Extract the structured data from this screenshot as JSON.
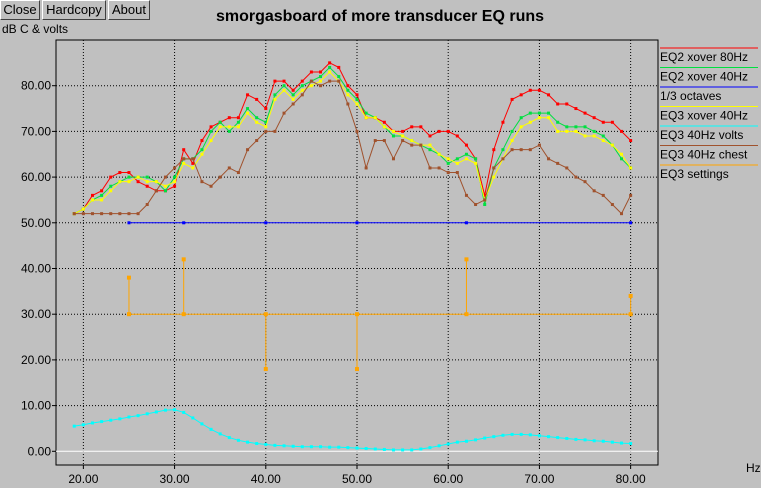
{
  "toolbar": {
    "close": "Close",
    "hardcopy": "Hardcopy",
    "about": "About"
  },
  "colors": {
    "background": "#c0c0c0",
    "grid": "#000000",
    "eq2_80": "#ff0000",
    "eq2_40": "#00e040",
    "octaves": "#0000ff",
    "eq3_40": "#ffff00",
    "eq3_volts": "#00ffff",
    "eq3_chest": "#a0522d",
    "eq3_settings": "#ffa500"
  },
  "chart_data": {
    "type": "line",
    "title": "smorgasboard of more transducer EQ runs",
    "ylabel": "dB C & volts",
    "xlabel": "Hz",
    "xlim": [
      17,
      83
    ],
    "ylim": [
      -3,
      90
    ],
    "xticks": [
      20,
      30,
      40,
      50,
      60,
      70,
      80
    ],
    "xtick_labels": [
      "20.00",
      "30.00",
      "40.00",
      "50.00",
      "60.00",
      "70.00",
      "80.00"
    ],
    "yticks": [
      0,
      10,
      20,
      30,
      40,
      50,
      60,
      70,
      80
    ],
    "ytick_labels": [
      "0.00",
      "10.00",
      "20.00",
      "30.00",
      "40.00",
      "50.00",
      "60.00",
      "70.00",
      "80.00"
    ],
    "grid": true,
    "legend": "right",
    "series": [
      {
        "name": "EQ2 xover 80Hz",
        "color": "#ff0000",
        "x": [
          19,
          20,
          21,
          22,
          23,
          24,
          25,
          26,
          27,
          28,
          29,
          30,
          31,
          32,
          33,
          34,
          35,
          36,
          37,
          38,
          39,
          40,
          41,
          42,
          43,
          44,
          45,
          46,
          47,
          48,
          49,
          50,
          51,
          52,
          53,
          54,
          55,
          56,
          57,
          58,
          59,
          60,
          61,
          62,
          63,
          64,
          65,
          66,
          67,
          68,
          69,
          70,
          71,
          72,
          73,
          74,
          75,
          76,
          77,
          78,
          79,
          80
        ],
        "y": [
          52,
          53,
          56,
          57,
          60,
          61,
          61,
          59,
          58,
          57,
          57,
          58,
          66,
          63,
          68,
          71,
          72,
          73,
          73,
          78,
          77,
          75,
          81,
          81,
          79,
          81,
          83,
          83,
          85,
          84,
          80,
          78,
          73,
          73,
          72,
          70,
          70,
          71,
          71,
          69,
          70,
          70,
          69,
          67,
          64,
          56,
          66,
          72,
          77,
          78,
          79,
          79,
          78,
          76,
          76,
          75,
          74,
          73,
          72,
          72,
          70,
          68
        ]
      },
      {
        "name": "EQ2 xover 40Hz",
        "color": "#00e040",
        "x": [
          19,
          20,
          21,
          22,
          23,
          24,
          25,
          26,
          27,
          28,
          29,
          30,
          31,
          32,
          33,
          34,
          35,
          36,
          37,
          38,
          39,
          40,
          41,
          42,
          43,
          44,
          45,
          46,
          47,
          48,
          49,
          50,
          51,
          52,
          53,
          54,
          55,
          56,
          57,
          58,
          59,
          60,
          61,
          62,
          63,
          64,
          65,
          66,
          67,
          68,
          69,
          70,
          71,
          72,
          73,
          74,
          75,
          76,
          77,
          78,
          79,
          80
        ],
        "y": [
          52,
          53,
          55,
          56,
          58,
          59,
          60,
          60,
          60,
          59,
          57,
          60,
          64,
          64,
          66,
          70,
          72,
          70,
          72,
          75,
          73,
          72,
          78,
          80,
          78,
          80,
          81,
          82,
          84,
          82,
          79,
          77,
          74,
          73,
          71,
          69,
          69,
          68,
          67,
          66,
          65,
          63,
          64,
          65,
          64,
          54,
          62,
          66,
          70,
          73,
          74,
          74,
          74,
          72,
          71,
          71,
          71,
          70,
          69,
          67,
          64,
          62
        ]
      },
      {
        "name": "1/3 octaves",
        "color": "#0000ff",
        "x": [
          25,
          31,
          40,
          50,
          62,
          80
        ],
        "y": [
          50,
          50,
          50,
          50,
          50,
          50
        ]
      },
      {
        "name": "EQ3 xover 40Hz",
        "color": "#ffff00",
        "x": [
          19,
          20,
          21,
          22,
          23,
          24,
          25,
          26,
          27,
          28,
          29,
          30,
          31,
          32,
          33,
          34,
          35,
          36,
          37,
          38,
          39,
          40,
          41,
          42,
          43,
          44,
          45,
          46,
          47,
          48,
          49,
          50,
          51,
          52,
          53,
          54,
          55,
          56,
          57,
          58,
          59,
          60,
          61,
          62,
          63,
          64,
          65,
          66,
          67,
          68,
          69,
          70,
          71,
          72,
          73,
          74,
          75,
          76,
          77,
          78,
          79,
          80
        ],
        "y": [
          52,
          53,
          55,
          55,
          57,
          59,
          59,
          60,
          59,
          59,
          58,
          59,
          63,
          62,
          65,
          68,
          71,
          71,
          71,
          74,
          72,
          71,
          77,
          79,
          77,
          79,
          80,
          81,
          83,
          81,
          78,
          76,
          73,
          73,
          71,
          70,
          69,
          68,
          67,
          67,
          65,
          64,
          63,
          64,
          63,
          55,
          60,
          64,
          68,
          71,
          72,
          73,
          73,
          70,
          70,
          70,
          69,
          69,
          68,
          67,
          65,
          62
        ]
      },
      {
        "name": "EQ3 40Hz volts",
        "color": "#00ffff",
        "x": [
          19,
          20,
          21,
          22,
          23,
          24,
          25,
          26,
          27,
          28,
          29,
          30,
          31,
          32,
          33,
          34,
          35,
          36,
          37,
          38,
          39,
          40,
          41,
          42,
          43,
          44,
          45,
          46,
          47,
          48,
          49,
          50,
          51,
          52,
          53,
          54,
          55,
          56,
          57,
          58,
          59,
          60,
          61,
          62,
          63,
          64,
          65,
          66,
          67,
          68,
          69,
          70,
          71,
          72,
          73,
          74,
          75,
          76,
          77,
          78,
          79,
          80
        ],
        "y": [
          5.5,
          5.8,
          6.2,
          6.5,
          6.8,
          7.1,
          7.5,
          7.8,
          8.2,
          8.6,
          9.0,
          9.1,
          8.5,
          7.3,
          6.0,
          4.8,
          3.8,
          3.0,
          2.4,
          2.0,
          1.7,
          1.5,
          1.3,
          1.2,
          1.1,
          1.0,
          1.0,
          1.0,
          0.9,
          0.9,
          0.8,
          0.7,
          0.6,
          0.5,
          0.4,
          0.3,
          0.3,
          0.3,
          0.5,
          0.8,
          1.2,
          1.6,
          2.0,
          2.2,
          2.5,
          2.9,
          3.2,
          3.5,
          3.7,
          3.7,
          3.6,
          3.4,
          3.2,
          3.0,
          2.8,
          2.6,
          2.5,
          2.3,
          2.2,
          2.0,
          1.8,
          1.7
        ]
      },
      {
        "name": "EQ3 40Hz chest",
        "color": "#a0522d",
        "x": [
          19,
          20,
          21,
          22,
          23,
          24,
          25,
          26,
          27,
          28,
          29,
          30,
          31,
          32,
          33,
          34,
          35,
          36,
          37,
          38,
          39,
          40,
          41,
          42,
          43,
          44,
          45,
          46,
          47,
          48,
          49,
          50,
          51,
          52,
          53,
          54,
          55,
          56,
          57,
          58,
          59,
          60,
          61,
          62,
          63,
          64,
          65,
          66,
          67,
          68,
          69,
          70,
          71,
          72,
          73,
          74,
          75,
          76,
          77,
          78,
          79,
          80
        ],
        "y": [
          52,
          52,
          52,
          52,
          52,
          52,
          52,
          52,
          54,
          57,
          60,
          62,
          64,
          64,
          59,
          58,
          60,
          62,
          61,
          66,
          68,
          70,
          70,
          74,
          76,
          78,
          81,
          80,
          81,
          81,
          76,
          70,
          62,
          68,
          68,
          64,
          68,
          67,
          67,
          62,
          62,
          61,
          61,
          56,
          54,
          55,
          62,
          64,
          66,
          66,
          66,
          67,
          64,
          63,
          62,
          60,
          59,
          57,
          56,
          54,
          52,
          56
        ]
      },
      {
        "name": "EQ3 settings",
        "color": "#ffa500",
        "baseline": 30,
        "x": [
          25,
          31,
          40,
          50,
          62,
          80
        ],
        "y": [
          38,
          42,
          18,
          18,
          42,
          34
        ]
      }
    ]
  }
}
